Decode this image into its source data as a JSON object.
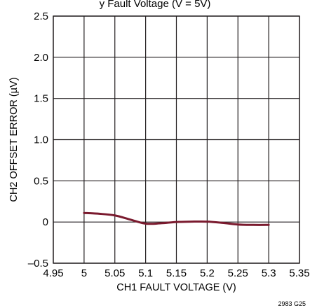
{
  "title_fragment": "y  Fault Voltage (V  = 5V)",
  "figure_id": "2983 G25",
  "chart_data": {
    "type": "line",
    "xlabel": "CH1 FAULT VOLTAGE (V)",
    "ylabel": "CH2 OFFSET ERROR (µV)",
    "xlim": [
      4.95,
      5.35
    ],
    "ylim": [
      -0.5,
      2.5
    ],
    "x_ticks": [
      4.95,
      5,
      5.05,
      5.1,
      5.15,
      5.2,
      5.25,
      5.3,
      5.35
    ],
    "x_tick_labels": [
      "4.95",
      "5",
      "5.05",
      "5.1",
      "5.15",
      "5.2",
      "5.25",
      "5.3",
      "5.35"
    ],
    "y_ticks": [
      -0.5,
      0,
      0.5,
      1.0,
      1.5,
      2.0,
      2.5
    ],
    "y_tick_labels": [
      "–0.5",
      "0",
      "0.5",
      "1.0",
      "1.5",
      "2.0",
      "2.5"
    ],
    "grid": true,
    "series": [
      {
        "color": "#7a1a2e",
        "x": [
          5.0,
          5.025,
          5.05,
          5.075,
          5.1,
          5.125,
          5.15,
          5.175,
          5.2,
          5.225,
          5.25,
          5.275,
          5.3
        ],
        "y": [
          0.11,
          0.1,
          0.08,
          0.03,
          -0.02,
          -0.015,
          0.0,
          0.005,
          0.005,
          -0.01,
          -0.03,
          -0.035,
          -0.035
        ]
      }
    ]
  }
}
